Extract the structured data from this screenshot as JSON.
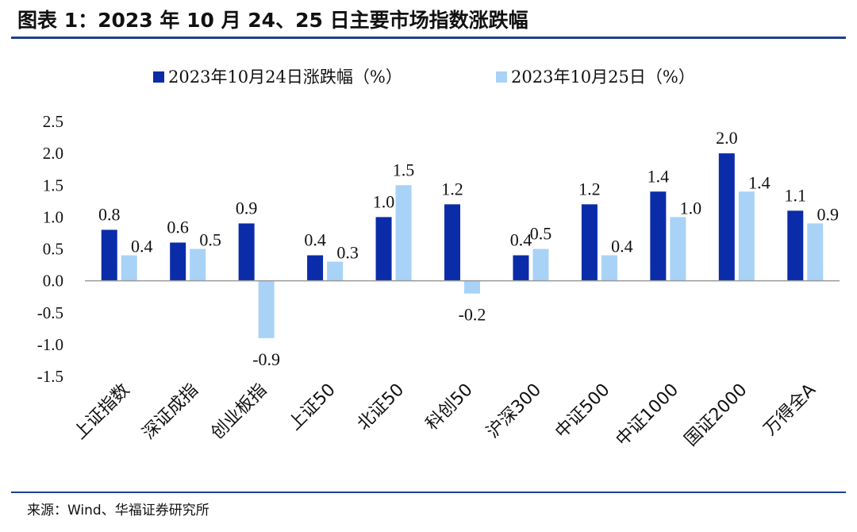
{
  "header": {
    "title": "图表 1：2023 年 10 月 24、25 日主要市场指数涨跌幅"
  },
  "footer": {
    "source": "来源：Wind、华福证券研究所"
  },
  "colors": {
    "series1": "#0a2ca8",
    "series2": "#a9d2f7",
    "rule": "#1f3f94"
  },
  "chart_data": {
    "type": "bar",
    "title": "",
    "xlabel": "",
    "ylabel": "",
    "ylim": [
      -1.5,
      2.5
    ],
    "yticks": [
      "2.5",
      "2.0",
      "1.5",
      "1.0",
      "0.5",
      "0.0",
      "-0.5",
      "-1.0",
      "-1.5"
    ],
    "grid": false,
    "legend": "top",
    "categories": [
      "上证指数",
      "深证成指",
      "创业板指",
      "上证50",
      "北证50",
      "科创50",
      "沪深300",
      "中证500",
      "中证1000",
      "国证2000",
      "万得全A"
    ],
    "series": [
      {
        "name": "2023年10月24日涨跌幅（%）",
        "values": [
          0.8,
          0.6,
          0.9,
          0.4,
          1.0,
          1.2,
          0.4,
          1.2,
          1.4,
          2.0,
          1.1
        ]
      },
      {
        "name": "2023年10月25日（%）",
        "values": [
          0.4,
          0.5,
          -0.9,
          0.3,
          1.5,
          -0.2,
          0.5,
          0.4,
          1.0,
          1.4,
          0.9
        ]
      }
    ]
  }
}
